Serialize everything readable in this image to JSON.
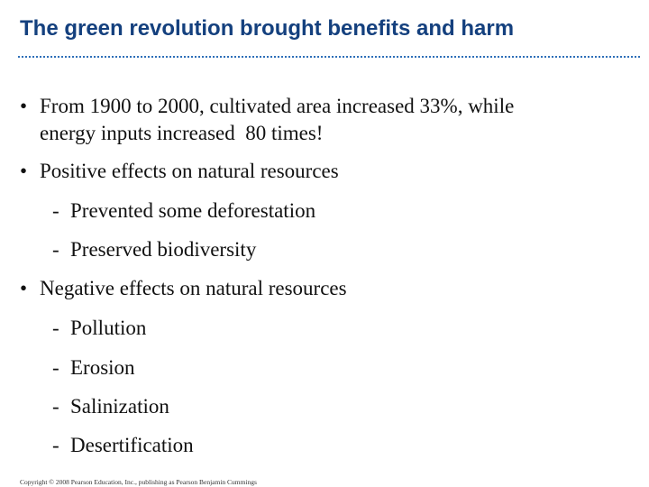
{
  "slide": {
    "title": "The green revolution brought benefits and harm",
    "bullets": [
      {
        "marker": "•",
        "lines": [
          "From 1900 to 2000, cultivated area increased 33%, while",
          "energy inputs increased  80 times!"
        ]
      },
      {
        "marker": "•",
        "lines": [
          "Positive effects on natural resources"
        ],
        "subitems": [
          "Prevented some deforestation",
          "Preserved biodiversity"
        ]
      },
      {
        "marker": "•",
        "lines": [
          "Negative effects on natural resources"
        ],
        "subitems": [
          "Pollution",
          "Erosion",
          "Salinization",
          "Desertification"
        ]
      }
    ],
    "sub_marker": "-",
    "copyright": "Copyright © 2008 Pearson Education, Inc., publishing as Pearson Benjamin Cummings"
  },
  "colors": {
    "title": "#14407e",
    "rule": "#2e6fb8",
    "text": "#111111"
  }
}
